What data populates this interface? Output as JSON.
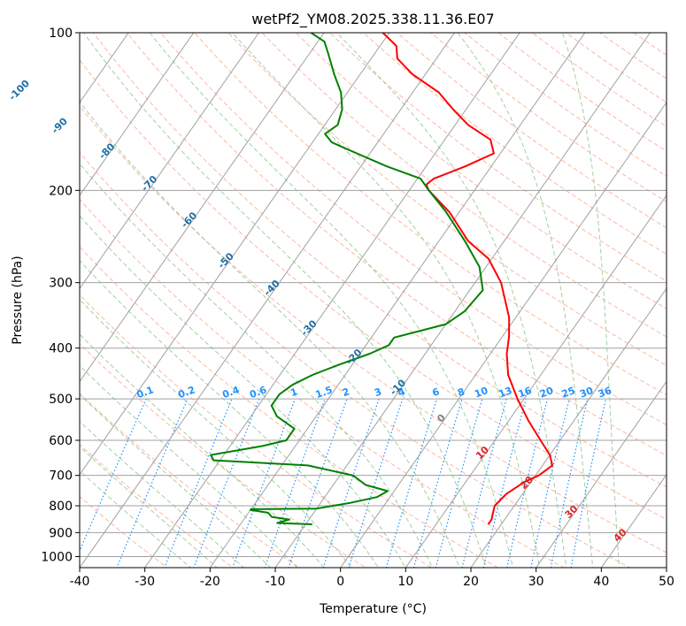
{
  "chart_data": {
    "type": "skew-t",
    "title": "wetPf2_YM08.2025.338.11.36.E07",
    "xlabel": "Temperature (°C)",
    "ylabel": "Pressure (hPa)",
    "xlim": [
      -40,
      50
    ],
    "ylim": [
      1050,
      100
    ],
    "y_scale": "log",
    "x_ticks": [
      "-40",
      "-30",
      "-20",
      "-10",
      "0",
      "10",
      "20",
      "30",
      "40",
      "50"
    ],
    "y_ticks": [
      "100",
      "200",
      "300",
      "400",
      "500",
      "600",
      "700",
      "800",
      "900",
      "1000"
    ],
    "grid": true,
    "colors": {
      "temperature": "#ff0000",
      "dewpoint": "#008000",
      "dry_adiabat": "#ff9f80",
      "moist_adiabat": "#90c890",
      "mixing_ratio": "#1e90ff",
      "isotherm": "#a0a0a0",
      "isotherm_label_cold": "#1f6fa8",
      "isotherm_label_warm": "#d62728",
      "isotherm_label_zero": "#808080"
    },
    "series": [
      {
        "kind": "temperature",
        "points": [
          [
            868,
            18.0
          ],
          [
            850,
            18.0
          ],
          [
            825,
            17.5
          ],
          [
            800,
            17.0
          ],
          [
            760,
            17.5
          ],
          [
            720,
            19.0
          ],
          [
            700,
            20.5
          ],
          [
            670,
            21.5
          ],
          [
            640,
            20.0
          ],
          [
            600,
            17.0
          ],
          [
            550,
            13.0
          ],
          [
            500,
            9.0
          ],
          [
            450,
            5.0
          ],
          [
            410,
            2.5
          ],
          [
            380,
            1.0
          ],
          [
            350,
            -1.0
          ],
          [
            300,
            -6.0
          ],
          [
            270,
            -10.5
          ],
          [
            250,
            -15.5
          ],
          [
            220,
            -21.5
          ],
          [
            200,
            -27.0
          ],
          [
            195,
            -28.0
          ],
          [
            190,
            -27.5
          ],
          [
            180,
            -24.0
          ],
          [
            170,
            -21.0
          ],
          [
            160,
            -23.0
          ],
          [
            150,
            -28.0
          ],
          [
            140,
            -32.0
          ],
          [
            130,
            -36.0
          ],
          [
            120,
            -42.0
          ],
          [
            112,
            -46.0
          ],
          [
            106,
            -47.5
          ],
          [
            100,
            -51.0
          ]
        ]
      },
      {
        "kind": "dewpoint",
        "points": [
          [
            868,
            -9.0
          ],
          [
            863,
            -14.5
          ],
          [
            850,
            -13.0
          ],
          [
            840,
            -16.0
          ],
          [
            825,
            -17.0
          ],
          [
            815,
            -20.0
          ],
          [
            812,
            -20.0
          ],
          [
            810,
            -10.0
          ],
          [
            790,
            -5.5
          ],
          [
            770,
            -2.0
          ],
          [
            750,
            -1.0
          ],
          [
            730,
            -5.0
          ],
          [
            700,
            -8.0
          ],
          [
            670,
            -16.0
          ],
          [
            655,
            -31.0
          ],
          [
            640,
            -32.0
          ],
          [
            615,
            -25.0
          ],
          [
            600,
            -22.0
          ],
          [
            570,
            -22.0
          ],
          [
            540,
            -26.0
          ],
          [
            515,
            -28.0
          ],
          [
            490,
            -28.0
          ],
          [
            470,
            -27.0
          ],
          [
            450,
            -25.0
          ],
          [
            430,
            -22.0
          ],
          [
            410,
            -18.5
          ],
          [
            395,
            -16.5
          ],
          [
            382,
            -16.5
          ],
          [
            370,
            -13.0
          ],
          [
            360,
            -10.0
          ],
          [
            340,
            -8.5
          ],
          [
            310,
            -8.0
          ],
          [
            280,
            -11.0
          ],
          [
            250,
            -16.0
          ],
          [
            220,
            -22.0
          ],
          [
            200,
            -27.0
          ],
          [
            190,
            -29.5
          ],
          [
            180,
            -36.0
          ],
          [
            170,
            -42.0
          ],
          [
            162,
            -47.0
          ],
          [
            156,
            -49.0
          ],
          [
            150,
            -48.0
          ],
          [
            140,
            -49.0
          ],
          [
            130,
            -51.0
          ],
          [
            120,
            -54.0
          ],
          [
            110,
            -57.0
          ],
          [
            104,
            -59.0
          ],
          [
            100,
            -62.0
          ]
        ]
      }
    ],
    "isotherm_labels": [
      {
        "t": -100,
        "p": 130
      },
      {
        "t": -90,
        "p": 152
      },
      {
        "t": -80,
        "p": 170
      },
      {
        "t": -70,
        "p": 196
      },
      {
        "t": -60,
        "p": 230
      },
      {
        "t": -50,
        "p": 275
      },
      {
        "t": -40,
        "p": 310
      },
      {
        "t": -30,
        "p": 370
      },
      {
        "t": -20,
        "p": 420
      },
      {
        "t": -10,
        "p": 480
      },
      {
        "t": 0,
        "p": 550
      },
      {
        "t": 10,
        "p": 640
      },
      {
        "t": 20,
        "p": 730
      },
      {
        "t": 30,
        "p": 830
      },
      {
        "t": 40,
        "p": 920
      }
    ],
    "mixing_ratio_labels": [
      "0.1",
      "0.2",
      "0.4",
      "0.6",
      "1",
      "1.5",
      "2",
      "3",
      "4",
      "6",
      "8",
      "10",
      "13",
      "16",
      "20",
      "25",
      "30",
      "36"
    ]
  }
}
